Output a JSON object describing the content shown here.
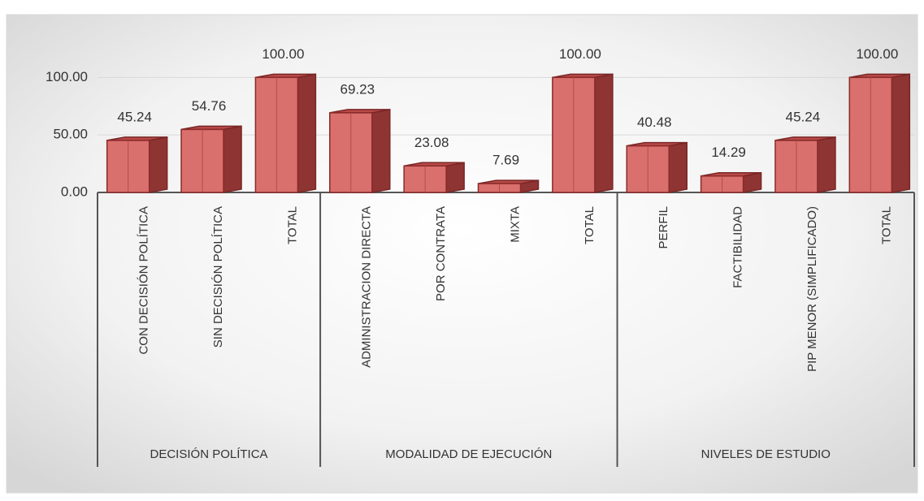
{
  "chart_data": {
    "type": "bar",
    "groups": [
      {
        "name": "DECISIÓN POLÍTICA",
        "categories": [
          "CON DECISIÓN POLÍTICA",
          "SIN DECISIÓN POLÍTICA",
          "TOTAL"
        ],
        "values": [
          45.24,
          54.76,
          100
        ],
        "value_labels": [
          "45.24",
          "54.76",
          "100.00"
        ]
      },
      {
        "name": "MODALIDAD DE  EJECUCIÓN",
        "categories": [
          "ADMINISTRACION DIRECTA",
          "POR  CONTRATA",
          "MIXTA",
          "TOTAL"
        ],
        "values": [
          69.23,
          23.08,
          7.69,
          100
        ],
        "value_labels": [
          "69.23",
          "23.08",
          "7.69",
          "100.00"
        ]
      },
      {
        "name": "NIVELES DE  ESTUDIO",
        "categories": [
          "PERFIL",
          "FACTIBILIDAD",
          "PIP MENOR (SIMPLIFICADO)",
          "TOTAL"
        ],
        "values": [
          40.48,
          14.29,
          45.24,
          100
        ],
        "value_labels": [
          "40.48",
          "14.29",
          "45.24",
          "100.00"
        ]
      }
    ],
    "color": "#d9706e",
    "ylim": [
      0,
      120
    ],
    "yticks": [
      {
        "value": 0,
        "label": "0.00"
      },
      {
        "value": 50,
        "label": "50.00"
      },
      {
        "value": 100,
        "label": "100.00"
      }
    ],
    "grid": true
  }
}
